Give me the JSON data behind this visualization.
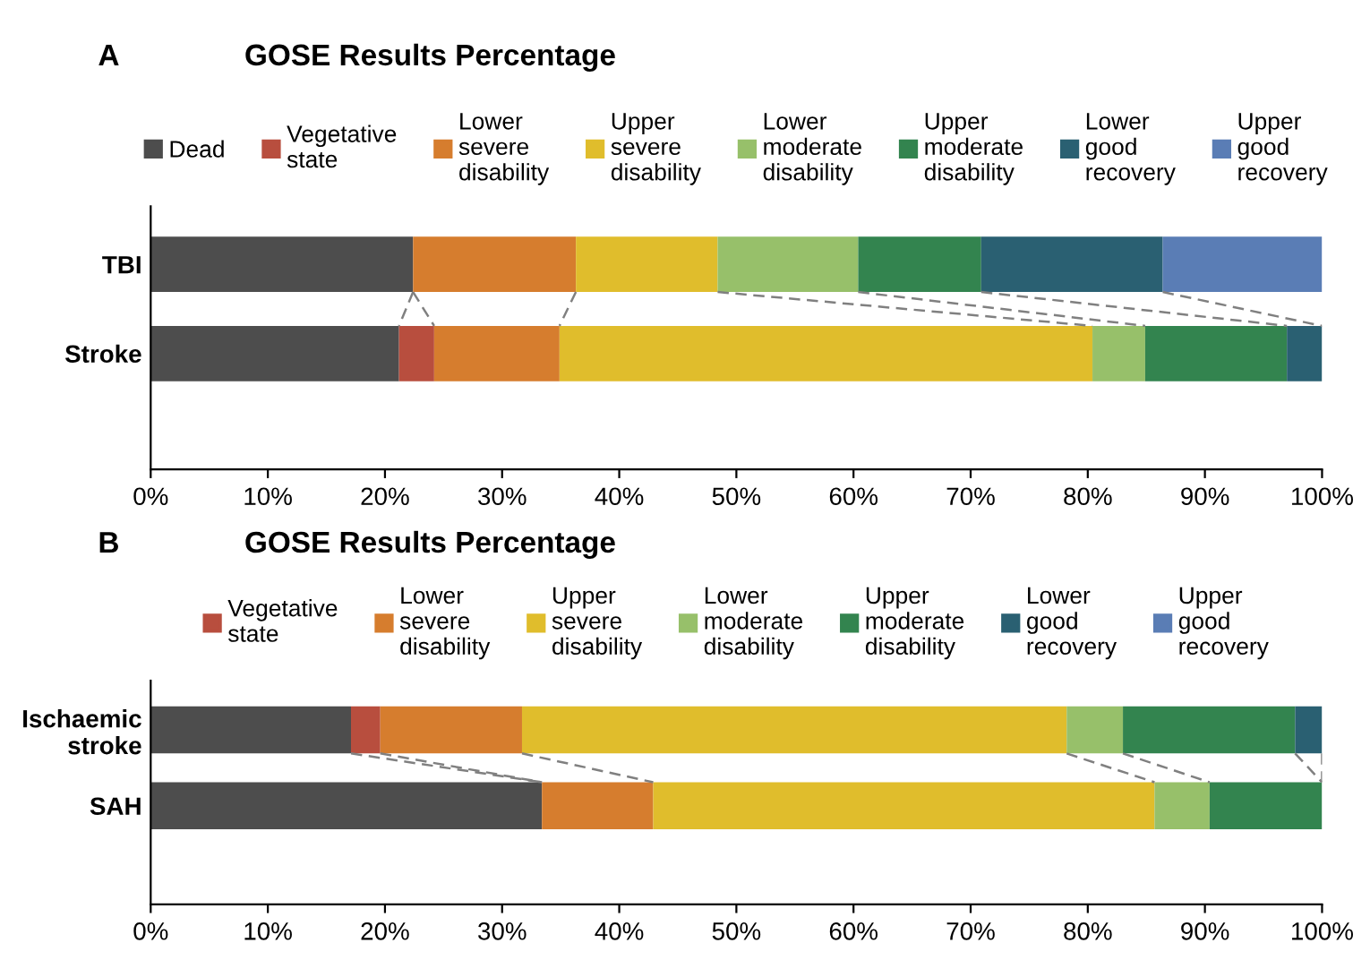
{
  "chart_data": [
    {
      "type": "bar",
      "orientation": "horizontal",
      "stacked": true,
      "title": "GOSE Results Percentage",
      "annotations": [
        "A"
      ],
      "legend": "top",
      "grid": false,
      "categories": [
        "TBI",
        "Stroke"
      ],
      "xlim": [
        0,
        100
      ],
      "xticks": [
        {
          "value": 0,
          "label": "0%"
        },
        {
          "value": 10,
          "label": "10%"
        },
        {
          "value": 20,
          "label": "20%"
        },
        {
          "value": 30,
          "label": "30%"
        },
        {
          "value": 40,
          "label": "40%"
        },
        {
          "value": 50,
          "label": "50%"
        },
        {
          "value": 60,
          "label": "60%"
        },
        {
          "value": 70,
          "label": "70%"
        },
        {
          "value": 80,
          "label": "80%"
        },
        {
          "value": 90,
          "label": "90%"
        },
        {
          "value": 100,
          "label": "100%"
        }
      ],
      "series": [
        {
          "name": "Dead",
          "color": "#4d4d4d",
          "values": [
            22.4,
            21.2
          ]
        },
        {
          "name": "Vegetative state",
          "color": "#b84e3e",
          "values": [
            0,
            3.0
          ]
        },
        {
          "name": "Lower severe disability",
          "color": "#d67d2e",
          "values": [
            13.9,
            10.7
          ]
        },
        {
          "name": "Upper severe disability",
          "color": "#e0bd2c",
          "values": [
            12.1,
            45.5
          ]
        },
        {
          "name": "Lower moderate disability",
          "color": "#97c06a",
          "values": [
            12.0,
            4.5
          ]
        },
        {
          "name": "Upper moderate disability",
          "color": "#33844f",
          "values": [
            10.5,
            12.1
          ]
        },
        {
          "name": "Lower good recovery",
          "color": "#2a6072",
          "values": [
            15.5,
            3.0
          ]
        },
        {
          "name": "Upper good recovery",
          "color": "#5a7db5",
          "values": [
            13.6,
            0
          ]
        }
      ]
    },
    {
      "type": "bar",
      "orientation": "horizontal",
      "stacked": true,
      "title": "GOSE Results Percentage",
      "annotations": [
        "B"
      ],
      "legend": "top",
      "grid": false,
      "categories": [
        "Ischaemic stroke",
        "SAH"
      ],
      "xlim": [
        0,
        100
      ],
      "xticks": [
        {
          "value": 0,
          "label": "0%"
        },
        {
          "value": 10,
          "label": "10%"
        },
        {
          "value": 20,
          "label": "20%"
        },
        {
          "value": 30,
          "label": "30%"
        },
        {
          "value": 40,
          "label": "40%"
        },
        {
          "value": 50,
          "label": "50%"
        },
        {
          "value": 60,
          "label": "60%"
        },
        {
          "value": 70,
          "label": "70%"
        },
        {
          "value": 80,
          "label": "80%"
        },
        {
          "value": 90,
          "label": "90%"
        },
        {
          "value": 100,
          "label": "100%"
        }
      ],
      "series": [
        {
          "color": "#4d4d4d",
          "values": [
            17.1,
            33.4
          ]
        },
        {
          "name": "Vegetative state",
          "color": "#b84e3e",
          "values": [
            2.5,
            0
          ]
        },
        {
          "name": "Lower severe disability",
          "color": "#d67d2e",
          "values": [
            12.1,
            9.5
          ]
        },
        {
          "name": "Upper severe disability",
          "color": "#e0bd2c",
          "values": [
            46.5,
            42.8
          ]
        },
        {
          "name": "Lower moderate disability",
          "color": "#97c06a",
          "values": [
            4.8,
            4.7
          ]
        },
        {
          "name": "Upper moderate disability",
          "color": "#33844f",
          "values": [
            14.7,
            9.6
          ]
        },
        {
          "name": "Lower good recovery",
          "color": "#2a6072",
          "values": [
            2.3,
            0
          ]
        },
        {
          "name": "Upper good recovery",
          "color": "#5a7db5",
          "values": [
            0,
            0
          ]
        }
      ]
    }
  ]
}
